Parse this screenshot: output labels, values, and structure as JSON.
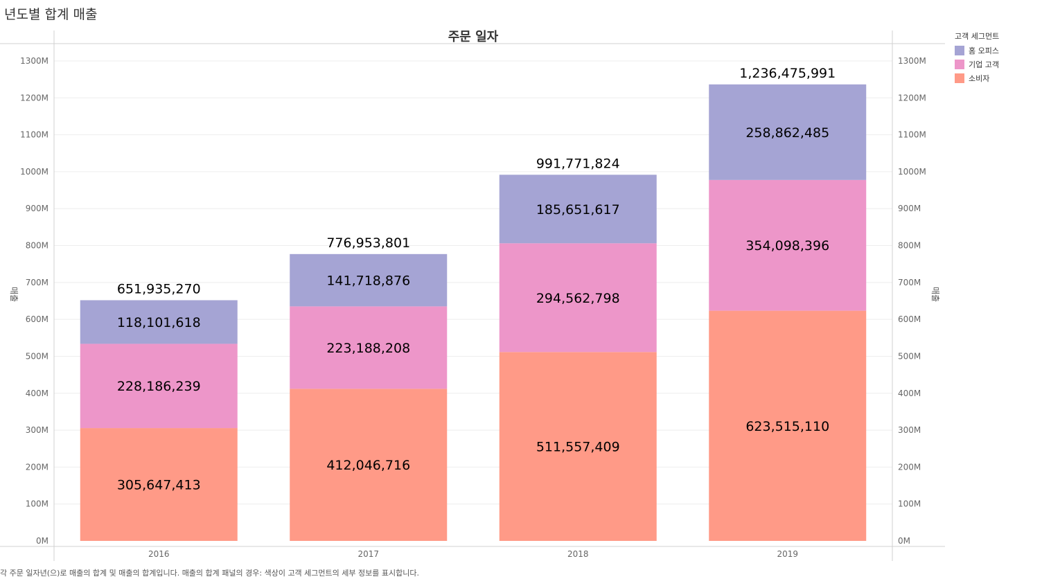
{
  "title": "년도별 합계 매출",
  "caption": "각 주문 일자년(으)로 매출의 합계 및 매출의 합계입니다. 매출의 합계 패널의 경우: 색상이 고객 세그먼트의 세부 정보를 표시합니다.",
  "legend": {
    "title": "고객 세그먼트",
    "items": [
      {
        "label": "홈 오피스",
        "color": "#a5a4d4"
      },
      {
        "label": "기업 고객",
        "color": "#ed96c9"
      },
      {
        "label": "소비자",
        "color": "#ff9a87"
      }
    ]
  },
  "chart_data": {
    "type": "bar",
    "stacked": true,
    "header": "주문 일자",
    "ylabel": "매출",
    "ylim": [
      0,
      1300000000
    ],
    "yticks": [
      "0M",
      "100M",
      "200M",
      "300M",
      "400M",
      "500M",
      "600M",
      "700M",
      "800M",
      "900M",
      "1000M",
      "1100M",
      "1200M",
      "1300M"
    ],
    "categories": [
      "2016",
      "2017",
      "2018",
      "2019"
    ],
    "series": [
      {
        "name": "소비자",
        "color": "#ff9a87",
        "values": [
          305647413,
          412046716,
          511557409,
          623515110
        ],
        "labels": [
          "305,647,413",
          "412,046,716",
          "511,557,409",
          "623,515,110"
        ]
      },
      {
        "name": "기업 고객",
        "color": "#ed96c9",
        "values": [
          228186239,
          223188208,
          294562798,
          354098396
        ],
        "labels": [
          "228,186,239",
          "223,188,208",
          "294,562,798",
          "354,098,396"
        ]
      },
      {
        "name": "홈 오피스",
        "color": "#a5a4d4",
        "values": [
          118101618,
          141718876,
          185651617,
          258862485
        ],
        "labels": [
          "118,101,618",
          "141,718,876",
          "185,651,617",
          "258,862,485"
        ]
      }
    ],
    "totals": [
      651935270,
      776953801,
      991771824,
      1236475991
    ],
    "total_labels": [
      "651,935,270",
      "776,953,801",
      "991,771,824",
      "1,236,475,991"
    ],
    "grid": true
  }
}
